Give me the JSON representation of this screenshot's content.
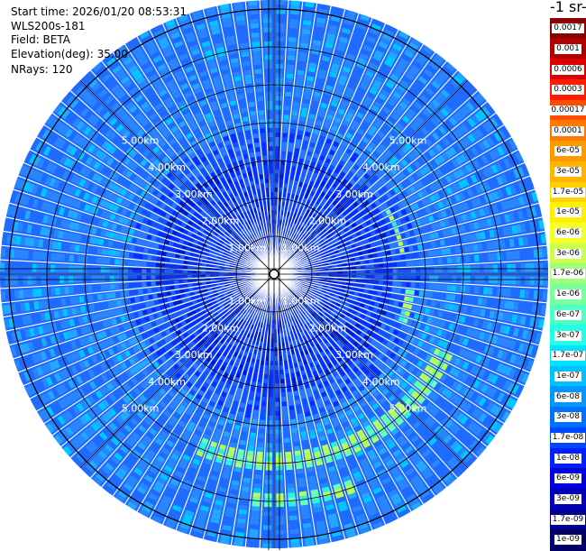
{
  "info": {
    "start_time": "Start time: 2026/01/20 08:53:31",
    "device": "WLS200s-181",
    "field": "Field: BETA",
    "elevation": "Elevation(deg): 35.00",
    "nrays": "NRays: 120"
  },
  "unit_label": "-1 sr-",
  "range_rings": [
    "1.00km",
    "2.00km",
    "3.00km",
    "4.00km",
    "5.00km"
  ],
  "colorbar": {
    "labels": [
      "0.0017",
      "0.001",
      "0.0006",
      "0.0003",
      "0.00017",
      "0.0001",
      "6e-05",
      "3e-05",
      "1.7e-05",
      "1e-05",
      "6e-06",
      "3e-06",
      "1.7e-06",
      "1e-06",
      "6e-07",
      "3e-07",
      "1.7e-07",
      "1e-07",
      "6e-08",
      "3e-08",
      "1.7e-08",
      "1e-08",
      "6e-09",
      "3e-09",
      "1.7e-09",
      "1e-09"
    ],
    "colors": [
      "#8b0000",
      "#b20000",
      "#dc0000",
      "#ff1a00",
      "#ff4d00",
      "#ff7a00",
      "#ff9900",
      "#ffb400",
      "#ffd200",
      "#ffef00",
      "#f2ff2a",
      "#caff4e",
      "#a0ff78",
      "#78ff9e",
      "#4effc6",
      "#24ffe4",
      "#00e2ff",
      "#00c0ff",
      "#0098ff",
      "#0070ff",
      "#0048ff",
      "#0020ff",
      "#0000e0",
      "#0000b8",
      "#00008f",
      "#000066"
    ]
  }
}
